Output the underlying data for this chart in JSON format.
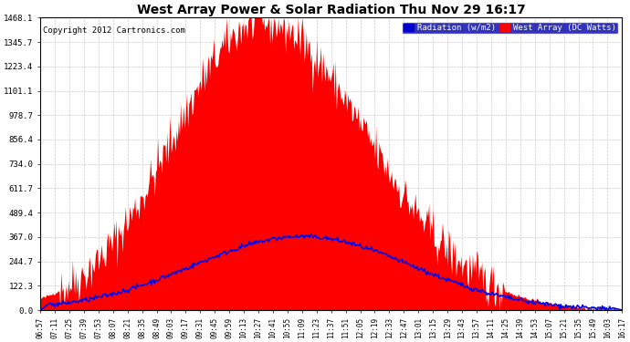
{
  "title": "West Array Power & Solar Radiation Thu Nov 29 16:17",
  "copyright": "Copyright 2012 Cartronics.com",
  "legend_labels": [
    "Radiation (w/m2)",
    "West Array (DC Watts)"
  ],
  "legend_colors": [
    "#0000ff",
    "#ff0000"
  ],
  "yticks": [
    0.0,
    122.3,
    244.7,
    367.0,
    489.4,
    611.7,
    734.0,
    856.4,
    978.7,
    1101.1,
    1223.4,
    1345.7,
    1468.1
  ],
  "ymax": 1468.1,
  "time_labels": [
    "06:57",
    "07:11",
    "07:25",
    "07:39",
    "07:53",
    "08:07",
    "08:21",
    "08:35",
    "08:49",
    "09:03",
    "09:17",
    "09:31",
    "09:45",
    "09:59",
    "10:13",
    "10:27",
    "10:41",
    "10:55",
    "11:09",
    "11:23",
    "11:37",
    "11:51",
    "12:05",
    "12:19",
    "12:33",
    "12:47",
    "13:01",
    "13:15",
    "13:29",
    "13:43",
    "13:57",
    "14:11",
    "14:25",
    "14:39",
    "14:53",
    "15:07",
    "15:21",
    "15:35",
    "15:49",
    "16:03",
    "16:17"
  ],
  "line_color": "#0000ee",
  "fill_color": "#ff0000",
  "grid_color": "#cccccc",
  "title_fontsize": 10,
  "copyright_fontsize": 6.5
}
